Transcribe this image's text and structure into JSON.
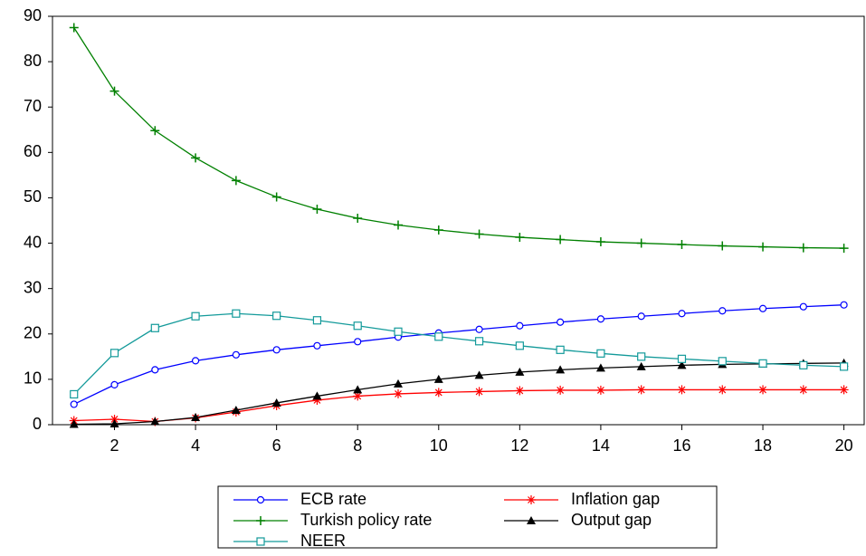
{
  "chart_data": {
    "type": "line",
    "x": [
      1,
      2,
      3,
      4,
      5,
      6,
      7,
      8,
      9,
      10,
      11,
      12,
      13,
      14,
      15,
      16,
      17,
      18,
      19,
      20
    ],
    "xlim": [
      0.47,
      20.5
    ],
    "xticks": [
      2,
      4,
      6,
      8,
      10,
      12,
      14,
      16,
      18,
      20
    ],
    "ylim": [
      0,
      90
    ],
    "yticks": [
      0,
      10,
      20,
      30,
      40,
      50,
      60,
      70,
      80,
      90
    ],
    "legend": "bottom",
    "series": [
      {
        "name": "ECB rate",
        "color": "#0000ff",
        "marker": "circle",
        "values": [
          4.5,
          8.8,
          12.1,
          14.1,
          15.4,
          16.5,
          17.4,
          18.3,
          19.3,
          20.2,
          21,
          21.8,
          22.6,
          23.3,
          23.9,
          24.5,
          25.1,
          25.6,
          26,
          26.4
        ]
      },
      {
        "name": "Inflation gap",
        "color": "#ff0000",
        "marker": "star",
        "values": [
          0.9,
          1.2,
          0.7,
          1.5,
          2.8,
          4.2,
          5.4,
          6.3,
          6.8,
          7.1,
          7.3,
          7.5,
          7.6,
          7.6,
          7.7,
          7.7,
          7.7,
          7.7,
          7.7,
          7.7
        ]
      },
      {
        "name": "Turkish policy rate",
        "color": "#008000",
        "marker": "plus",
        "values": [
          87.5,
          73.5,
          64.8,
          58.8,
          53.8,
          50.2,
          47.5,
          45.5,
          44,
          42.9,
          42,
          41.3,
          40.8,
          40.3,
          40,
          39.7,
          39.4,
          39.2,
          39,
          38.9
        ]
      },
      {
        "name": "Output gap",
        "color": "#000000",
        "marker": "triangle",
        "values": [
          0.1,
          0.2,
          0.7,
          1.6,
          3.2,
          4.8,
          6.3,
          7.7,
          9,
          10,
          10.9,
          11.6,
          12.1,
          12.5,
          12.8,
          13.1,
          13.3,
          13.4,
          13.5,
          13.6
        ]
      },
      {
        "name": "NEER",
        "color": "#139a9a",
        "marker": "square",
        "values": [
          6.7,
          15.8,
          21.3,
          23.9,
          24.5,
          24,
          23,
          21.8,
          20.5,
          19.4,
          18.4,
          17.4,
          16.5,
          15.7,
          15,
          14.5,
          14,
          13.5,
          13.1,
          12.8
        ]
      }
    ]
  }
}
